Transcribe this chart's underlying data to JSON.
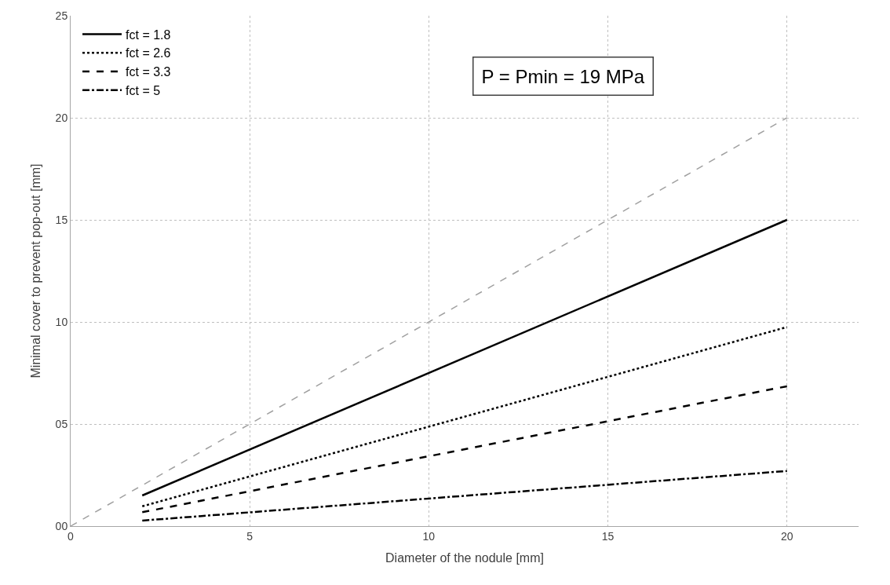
{
  "chart_data": {
    "type": "line",
    "xlabel": "Diameter of the nodule [mm]",
    "ylabel": "Minimal cover to prevent pop-out [mm]",
    "x": [
      2,
      20
    ],
    "series": [
      {
        "name": "fct = 1.8",
        "color": "#000000",
        "line_style": "solid",
        "values": [
          1.5,
          15
        ]
      },
      {
        "name": "fct = 2.6",
        "color": "#000000",
        "line_style": "dotted",
        "values": [
          0.97,
          9.75
        ]
      },
      {
        "name": "fct = 3.3",
        "color": "#000000",
        "line_style": "dashed",
        "values": [
          0.68,
          6.85
        ]
      },
      {
        "name": "fct = 5",
        "color": "#000000",
        "line_style": "dashdot",
        "values": [
          0.27,
          2.7
        ]
      },
      {
        "color": "#a0a0a0",
        "line_style": "dashed",
        "x": [
          0,
          20
        ],
        "values": [
          0,
          20
        ]
      }
    ],
    "xlim": [
      0,
      22
    ],
    "xticks": [
      0,
      5,
      10,
      15,
      20
    ],
    "ylim": [
      0,
      25
    ],
    "yticks": [
      {
        "value": 0,
        "label": "00"
      },
      {
        "value": 5,
        "label": "05"
      },
      10,
      15,
      20,
      25
    ],
    "grid": true,
    "legend": "top left",
    "marker": "none",
    "annotations": [
      "P = Pmin = 19 MPa"
    ]
  }
}
